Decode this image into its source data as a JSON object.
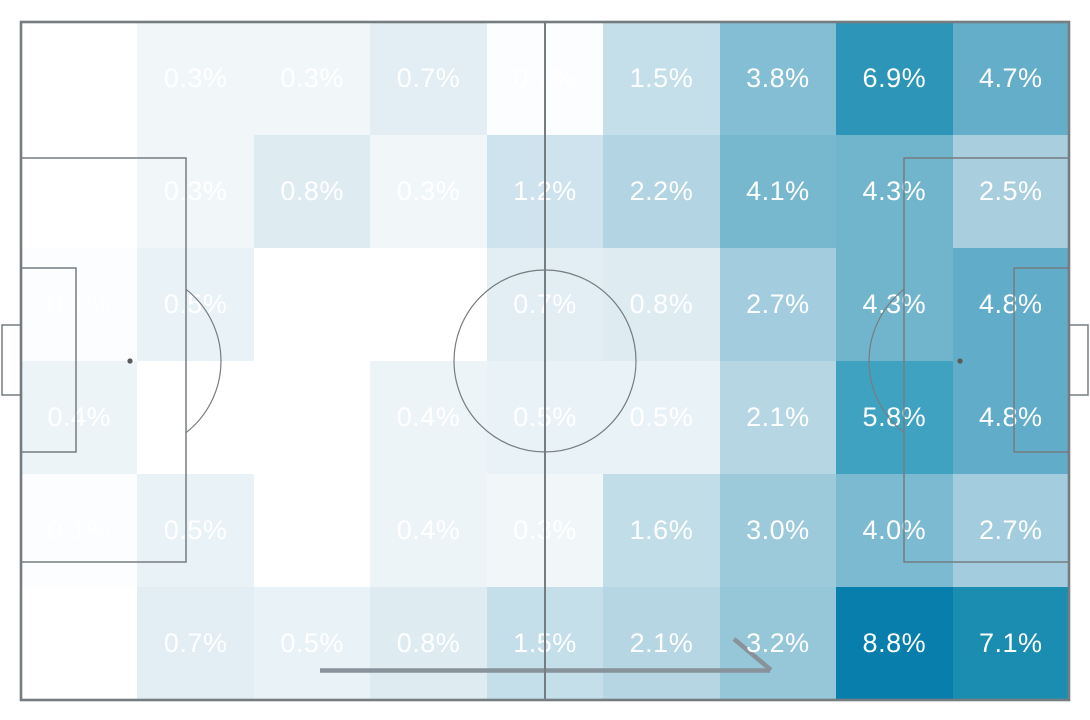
{
  "chart_data": {
    "type": "heatmap",
    "title": "",
    "description": "Football pitch zone heatmap (6 rows x 9 columns), cell values are percentages of actions in each zone, attacking left to right",
    "grid_rows": 6,
    "grid_cols": 9,
    "unit": "%",
    "value_min": 0.0,
    "value_max": 8.8,
    "colormap": {
      "low": "#ffffff",
      "high": "#077eac"
    },
    "pitch_line_color": "#757d80",
    "arrow_color": "#87929a",
    "label_color": "#ffffff",
    "cells": {
      "labels": [
        [
          "",
          "0.3%",
          "0.3%",
          "0.7%",
          "0.1%",
          "1.5%",
          "3.8%",
          "6.9%",
          "4.7%"
        ],
        [
          "",
          "0.3%",
          "0.8%",
          "0.3%",
          "1.2%",
          "2.2%",
          "4.1%",
          "4.3%",
          "2.5%"
        ],
        [
          "0.1%",
          "0.5%",
          "",
          "",
          "0.7%",
          "0.8%",
          "2.7%",
          "4.3%",
          "4.8%"
        ],
        [
          "0.4%",
          "",
          "",
          "0.4%",
          "0.5%",
          "0.5%",
          "2.1%",
          "5.8%",
          "4.8%"
        ],
        [
          "0.1%",
          "0.5%",
          "",
          "0.4%",
          "0.3%",
          "1.6%",
          "3.0%",
          "4.0%",
          "2.7%"
        ],
        [
          "",
          "0.7%",
          "0.5%",
          "0.8%",
          "1.5%",
          "2.1%",
          "3.2%",
          "8.8%",
          "7.1%"
        ]
      ],
      "values": [
        [
          null,
          0.3,
          0.3,
          0.7,
          0.1,
          1.5,
          3.8,
          6.9,
          4.7
        ],
        [
          null,
          0.3,
          0.8,
          0.3,
          1.2,
          2.2,
          4.1,
          4.3,
          2.5
        ],
        [
          0.1,
          0.5,
          null,
          null,
          0.7,
          0.8,
          2.7,
          4.3,
          4.8
        ],
        [
          0.4,
          null,
          null,
          0.4,
          0.5,
          0.5,
          2.1,
          5.8,
          4.8
        ],
        [
          0.1,
          0.5,
          null,
          0.4,
          0.3,
          1.6,
          3.0,
          4.0,
          2.7
        ],
        [
          null,
          0.7,
          0.5,
          0.8,
          1.5,
          2.1,
          3.2,
          8.8,
          7.1
        ]
      ],
      "colors": [
        [
          "#ffffff",
          "#f1f7f9",
          "#f1f7f9",
          "#e2eef3",
          "#fbfdfe",
          "#c4dfe9",
          "#83bed4",
          "#2d96b8",
          "#64aeca"
        ],
        [
          "#ffffff",
          "#f1f7f9",
          "#deecf2",
          "#f1f7f9",
          "#cee3ed",
          "#b3d5e3",
          "#78b8cf",
          "#71b5cd",
          "#a9cfdf"
        ],
        [
          "#fbfdfe",
          "#e9f2f6",
          "#ffffff",
          "#ffffff",
          "#e2eef3",
          "#deecf2",
          "#a3cdde",
          "#71b5cd",
          "#61adc9"
        ],
        [
          "#edf4f7",
          "#ffffff",
          "#ffffff",
          "#edf4f7",
          "#e9f2f6",
          "#e9f2f6",
          "#b6d6e4",
          "#3fa2c0",
          "#61adc9"
        ],
        [
          "#fbfdfe",
          "#e9f2f6",
          "#ffffff",
          "#edf4f7",
          "#f1f7f9",
          "#c1dde8",
          "#9ccadb",
          "#7cbad1",
          "#a3cdde"
        ],
        [
          "#ffffff",
          "#e2eef3",
          "#e9f2f6",
          "#deecf2",
          "#c4dfe9",
          "#b6d6e4",
          "#96c7d9",
          "#077eac",
          "#1a8db1"
        ]
      ]
    },
    "annotations": [
      {
        "type": "arrow",
        "direction": "right",
        "meaning": "direction of attack"
      }
    ]
  }
}
